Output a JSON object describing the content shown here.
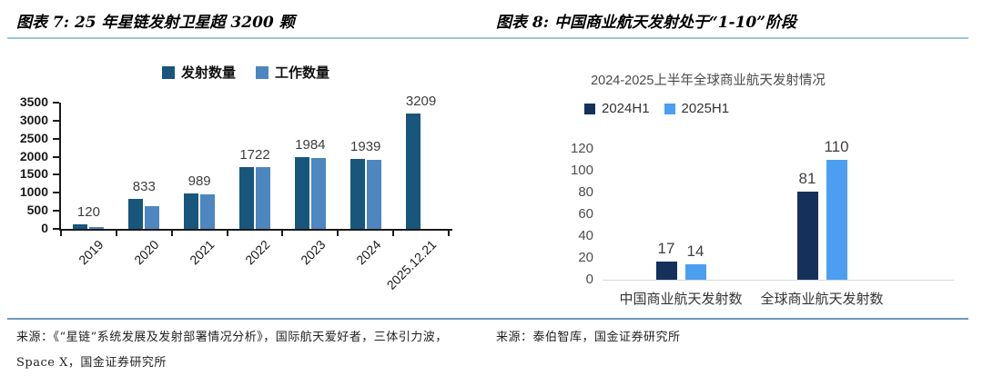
{
  "header": {
    "left_title": "图表 7: 25 年星链发射卫星超 3200 颗",
    "right_title": "图表 8: 中国商业航天发射处于“1-10”阶段"
  },
  "footer": {
    "left_source_line1": "来源：《“星链”系统发展及发射部署情况分析》，国际航天爱好者，三体引力波，",
    "left_source_line2": "Space X，国金证券研究所",
    "right_source": "来源：泰伯智库，国金证券研究所"
  },
  "colors": {
    "launch_series_dark_blue": "#18567C",
    "working_series_light_blue": "#4E86C0",
    "h1_2024_navy": "#16305C",
    "h1_2025_light_blue": "#4C9FF0",
    "header_rule_blue": "#9FC3DA",
    "footer_rule_blue": "#6F99B8",
    "axis_black": "#1A1A1A",
    "baseline_gray": "#D9D9D9"
  },
  "chart_data": [
    {
      "type": "bar",
      "title": "",
      "categories": [
        "2019",
        "2020",
        "2021",
        "2022",
        "2023",
        "2024",
        "2025.12.21"
      ],
      "series": [
        {
          "name": "发射数量",
          "color": "#18567C",
          "values": [
            120,
            833,
            989,
            1722,
            1984,
            1939,
            3209
          ]
        },
        {
          "name": "工作数量",
          "color": "#4E86C0",
          "values": [
            50,
            630,
            950,
            1700,
            1975,
            1925,
            null
          ]
        }
      ],
      "group_labels": [
        "120",
        "833",
        "989",
        "1722",
        "1984",
        "1939",
        "3209"
      ],
      "xlabel": "",
      "ylabel": "",
      "ylim": [
        0,
        3500
      ],
      "ytick_step": 500,
      "legend_position": "top-center",
      "grid": false
    },
    {
      "type": "bar",
      "title": "2024-2025上半年全球商业航天发射情况",
      "categories": [
        "中国商业航天发射数",
        "全球商业航天发射数"
      ],
      "series": [
        {
          "name": "2024H1",
          "color": "#16305C",
          "values": [
            17,
            81
          ]
        },
        {
          "name": "2025H1",
          "color": "#4C9FF0",
          "values": [
            14,
            110
          ]
        }
      ],
      "bar_labels": [
        [
          "17",
          "81"
        ],
        [
          "14",
          "110"
        ]
      ],
      "xlabel": "",
      "ylabel": "",
      "ylim": [
        0,
        120
      ],
      "ytick_step": 20,
      "legend_position": "top-left",
      "grid": false
    }
  ]
}
